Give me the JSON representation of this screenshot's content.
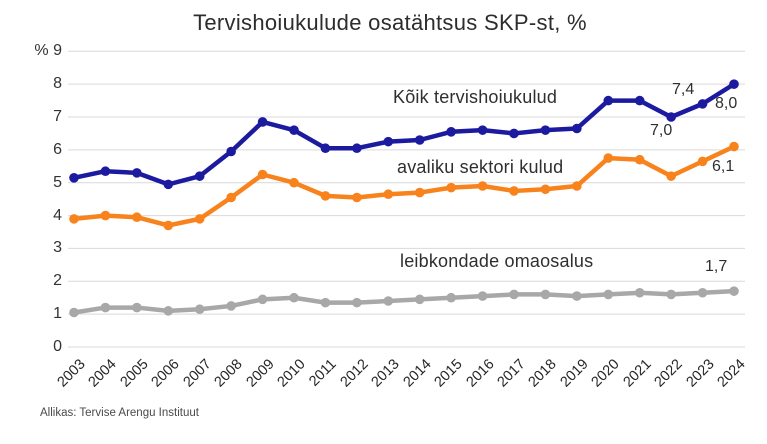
{
  "title": "Tervishoiukulude osatähtsus SKP-st, %",
  "source": "Allikas: Tervise Arengu Instituut",
  "chart_data": {
    "type": "line",
    "title": "Tervishoiukulude osatähtsus SKP-st, %",
    "x": [
      2003,
      2004,
      2005,
      2006,
      2007,
      2008,
      2009,
      2010,
      2011,
      2012,
      2013,
      2014,
      2015,
      2016,
      2017,
      2018,
      2019,
      2020,
      2021,
      2022,
      2023,
      2024
    ],
    "xlabel": "",
    "ylabel": "%",
    "y_unit": "%",
    "ylim": [
      0,
      9
    ],
    "y_ticks": [
      0,
      1,
      2,
      3,
      4,
      5,
      6,
      7,
      8,
      9
    ],
    "grid": "horizontal",
    "legend_position": "inline-labels",
    "series": [
      {
        "name": "Kõik tervishoiukulud",
        "color": "#1c1a9e",
        "values": [
          5.15,
          5.35,
          5.3,
          4.95,
          5.2,
          5.95,
          6.85,
          6.6,
          6.05,
          6.05,
          6.25,
          6.3,
          6.55,
          6.6,
          6.5,
          6.6,
          6.65,
          7.5,
          7.5,
          7.0,
          7.4,
          8.0
        ]
      },
      {
        "name": "avaliku sektori kulud",
        "color": "#f8821c",
        "values": [
          3.9,
          4.0,
          3.95,
          3.7,
          3.9,
          4.55,
          5.25,
          5.0,
          4.6,
          4.55,
          4.65,
          4.7,
          4.85,
          4.9,
          4.75,
          4.8,
          4.9,
          5.75,
          5.7,
          5.2,
          5.65,
          6.1
        ]
      },
      {
        "name": "leibkondade omaosalus",
        "color": "#a8a8a8",
        "values": [
          1.05,
          1.2,
          1.2,
          1.1,
          1.15,
          1.25,
          1.45,
          1.5,
          1.35,
          1.35,
          1.4,
          1.45,
          1.5,
          1.55,
          1.6,
          1.6,
          1.55,
          1.6,
          1.65,
          1.6,
          1.65,
          1.7
        ]
      }
    ],
    "annotations": [
      {
        "text": "7,4",
        "series": "Kõik tervishoiukulud",
        "x": 2023
      },
      {
        "text": "7,0",
        "series": "Kõik tervishoiukulud",
        "x": 2022
      },
      {
        "text": "8,0",
        "series": "Kõik tervishoiukulud",
        "x": 2024
      },
      {
        "text": "6,1",
        "series": "avaliku sektori kulud",
        "x": 2024
      },
      {
        "text": "1,7",
        "series": "leibkondade omaosalus",
        "x": 2024
      }
    ]
  }
}
